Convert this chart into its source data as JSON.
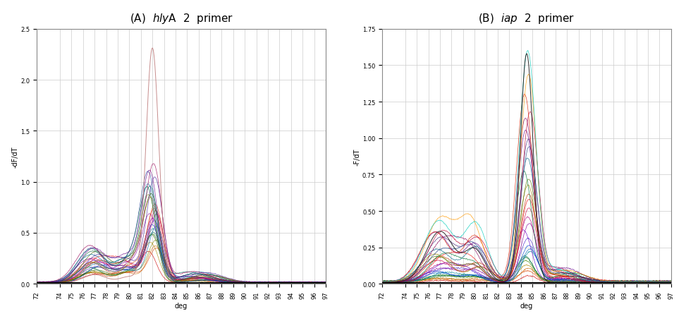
{
  "title_A": "(A)  $hly$A  2  primer",
  "title_B": "(B)  $iap$  2  primer",
  "xlabel": "deg",
  "ylabel_A": "-dF/dT",
  "ylabel_B": "-F/dT",
  "xlim": [
    72,
    97
  ],
  "xticks": [
    72,
    74,
    75,
    76,
    77,
    78,
    79,
    80,
    81,
    82,
    83,
    84,
    85,
    86,
    87,
    88,
    89,
    90,
    91,
    92,
    93,
    94,
    95,
    96,
    97
  ],
  "ylim_A": [
    0.0,
    2.5
  ],
  "yticks_A": [
    0.0,
    0.5,
    1.0,
    1.5,
    2.0,
    2.5
  ],
  "ylim_B": [
    0.0,
    1.75
  ],
  "yticks_B": [
    0.0,
    0.25,
    0.5,
    0.75,
    1.0,
    1.25,
    1.5,
    1.75
  ],
  "background_color": "#ffffff",
  "grid_color": "#cccccc",
  "title_fontsize": 11,
  "axis_label_fontsize": 7,
  "tick_fontsize": 6,
  "colors_A": [
    "#cc0000",
    "#dd4400",
    "#cc6600",
    "#aa8800",
    "#888800",
    "#336600",
    "#006600",
    "#007755",
    "#008888",
    "#0066aa",
    "#0044cc",
    "#4422cc",
    "#6600cc",
    "#880099",
    "#aa0077",
    "#cc0044",
    "#ee2222",
    "#cc4411",
    "#aa6600",
    "#888822",
    "#446600",
    "#006633",
    "#007766",
    "#006699",
    "#224499",
    "#442299",
    "#660088",
    "#990055",
    "#bb0033",
    "#dd3300"
  ],
  "colors_B": [
    "#000000",
    "#cc0000",
    "#dd4400",
    "#cc6600",
    "#aa8800",
    "#448800",
    "#006600",
    "#007755",
    "#008899",
    "#0066bb",
    "#0044cc",
    "#4422cc",
    "#6600cc",
    "#880099",
    "#aa0077",
    "#cc0044",
    "#ee1111",
    "#bb3300",
    "#998800",
    "#557700",
    "#007733",
    "#006688",
    "#224488",
    "#442277",
    "#660088",
    "#880055",
    "#bb0033",
    "#dd2200",
    "#ff9900",
    "#00ccbb"
  ]
}
